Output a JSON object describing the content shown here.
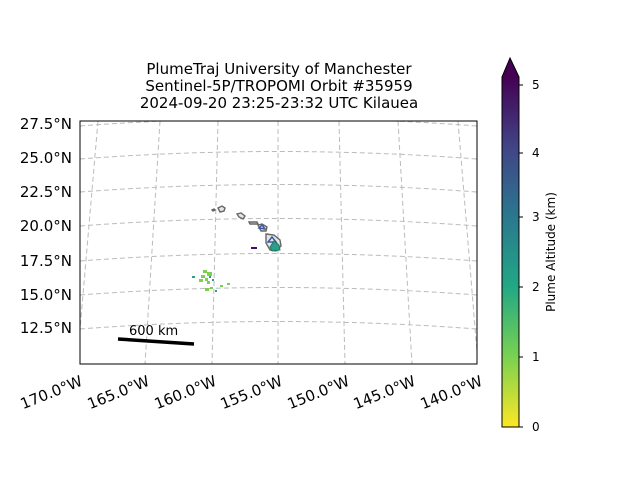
{
  "title": {
    "line1": "PlumeTraj    University of Manchester",
    "line2": "Sentinel-5P/TROPOMI Orbit #35959",
    "line3": "2024-09-20   23:25-23:32 UTC   Kilauea"
  },
  "axes": {
    "y_labels": [
      "27.5°N",
      "25.0°N",
      "22.5°N",
      "20.0°N",
      "17.5°N",
      "15.0°N",
      "12.5°N"
    ],
    "x_labels": [
      "170.0°W",
      "165.0°W",
      "160.0°W",
      "155.0°W",
      "150.0°W",
      "145.0°W",
      "140.0°W"
    ],
    "grid": true
  },
  "scale_bar": {
    "label": "600 km"
  },
  "colorbar": {
    "label": "Plume Altitude (km)",
    "ticks": [
      "0",
      "1",
      "2",
      "3",
      "4",
      "5"
    ],
    "range": [
      0,
      5
    ],
    "colormap": "viridis_r",
    "extend": "max"
  },
  "colors": {
    "grid": "#bbbbbb",
    "coast": "#666666",
    "plume_low": "#7ccf4f",
    "plume_mid": "#2a9d8f",
    "plume_high": "#3b5aa0",
    "plume_top": "#3b0f70"
  }
}
